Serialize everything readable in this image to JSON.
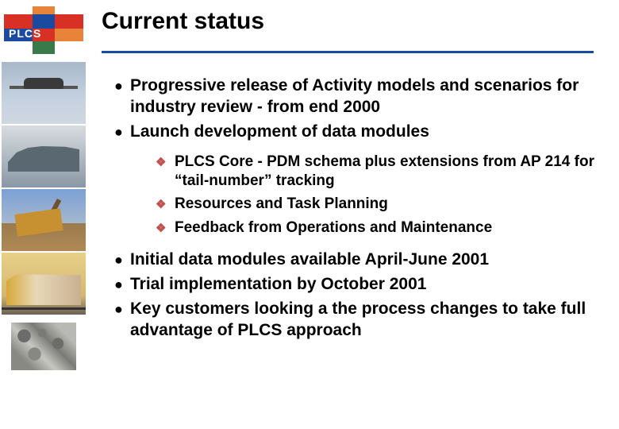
{
  "logo": {
    "text": "PLCS"
  },
  "title": "Current status",
  "separator_color": "#1a4ba0",
  "bullets": {
    "level1": [
      "Progressive release of Activity models and scenarios for industry review - from end 2000",
      "Launch development of data modules",
      "Initial data modules available April-June 2001",
      "Trial implementation by October 2001",
      "Key customers looking a the process changes to take full advantage of PLCS approach"
    ],
    "level2_after_index": 1,
    "level2": [
      "PLCS Core - PDM schema plus extensions from AP 214 for “tail-number” tracking",
      "Resources and Task Planning",
      "Feedback from Operations and Maintenance"
    ]
  },
  "styling": {
    "background_color": "#ffffff",
    "title_fontsize": 30,
    "bullet_fontsize": 21,
    "subbullet_fontsize": 19,
    "bullet_dot_color": "#000000",
    "diamond_color": "#c0504d",
    "text_color": "#000000",
    "font_family": "Arial",
    "font_weight": "bold",
    "logo_colors": {
      "red": "#d93025",
      "blue": "#1a4ba0",
      "orange": "#e8833a",
      "green": "#3a7a4a"
    }
  },
  "sidebar_images": [
    "airplane",
    "warship",
    "excavator",
    "train",
    "engine"
  ]
}
